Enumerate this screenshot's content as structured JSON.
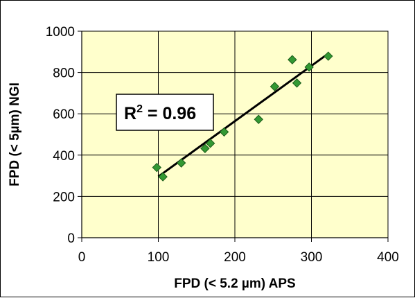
{
  "chart_data": {
    "type": "scatter",
    "xlabel": "FPD (< 5.2 µm) APS",
    "ylabel": "FPD (< 5µm) NGI",
    "xlim": [
      0,
      400
    ],
    "ylim": [
      0,
      1000
    ],
    "x_ticks": [
      "0",
      "100",
      "200",
      "300",
      "400"
    ],
    "y_ticks": [
      "0",
      "200",
      "400",
      "600",
      "800",
      "1000"
    ],
    "grid": true,
    "points": [
      {
        "x": 98,
        "y": 340
      },
      {
        "x": 106,
        "y": 295
      },
      {
        "x": 130,
        "y": 362
      },
      {
        "x": 161,
        "y": 432
      },
      {
        "x": 168,
        "y": 457
      },
      {
        "x": 186,
        "y": 512
      },
      {
        "x": 231,
        "y": 573
      },
      {
        "x": 252,
        "y": 732
      },
      {
        "x": 275,
        "y": 862
      },
      {
        "x": 281,
        "y": 749
      },
      {
        "x": 297,
        "y": 826
      },
      {
        "x": 322,
        "y": 879
      }
    ],
    "trendline": {
      "x": [
        100,
        320
      ],
      "y": [
        296,
        886
      ]
    },
    "annotation": {
      "base": "R",
      "sup": "2",
      "rest": " = 0.96"
    },
    "colors": {
      "plot_background": "#ffffcc",
      "marker_fill": "#339933",
      "marker_stroke": "#1a5c1a",
      "line": "#000000"
    }
  }
}
